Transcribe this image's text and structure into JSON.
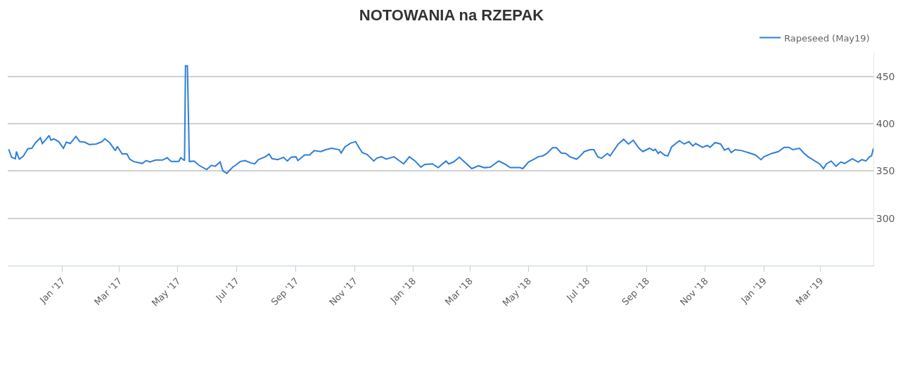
{
  "chart_data": {
    "type": "line",
    "title": "NOTOWANIA na RZEPAK",
    "x": [
      "2016-11-06",
      "2016-11-09",
      "2016-11-13",
      "2016-11-14",
      "2016-11-17",
      "2016-11-21",
      "2016-11-26",
      "2016-11-30",
      "2016-12-04",
      "2016-12-09",
      "2016-12-11",
      "2016-12-15",
      "2016-12-18",
      "2016-12-20",
      "2016-12-23",
      "2016-12-28",
      "2017-01-02",
      "2017-01-05",
      "2017-01-09",
      "2017-01-15",
      "2017-01-19",
      "2017-01-24",
      "2017-01-29",
      "2017-02-05",
      "2017-02-11",
      "2017-02-14",
      "2017-02-19",
      "2017-02-25",
      "2017-02-27",
      "2017-03-04",
      "2017-03-09",
      "2017-03-12",
      "2017-03-16",
      "2017-03-25",
      "2017-03-29",
      "2017-04-02",
      "2017-04-08",
      "2017-04-15",
      "2017-04-20",
      "2017-04-24",
      "2017-05-02",
      "2017-05-04",
      "2017-05-08",
      "2017-05-09",
      "2017-05-11",
      "2017-05-13",
      "2017-05-18",
      "2017-05-23",
      "2017-05-31",
      "2017-06-05",
      "2017-06-09",
      "2017-06-14",
      "2017-06-17",
      "2017-06-21",
      "2017-06-27",
      "2017-06-30",
      "2017-07-05",
      "2017-07-10",
      "2017-07-16",
      "2017-07-20",
      "2017-07-24",
      "2017-07-31",
      "2017-08-04",
      "2017-08-07",
      "2017-08-13",
      "2017-08-19",
      "2017-08-23",
      "2017-08-27",
      "2017-09-01",
      "2017-09-03",
      "2017-09-10",
      "2017-09-15",
      "2017-09-20",
      "2017-09-27",
      "2017-10-02",
      "2017-10-08",
      "2017-10-16",
      "2017-10-18",
      "2017-10-22",
      "2017-10-28",
      "2017-11-02",
      "2017-11-06",
      "2017-11-09",
      "2017-11-14",
      "2017-11-21",
      "2017-11-24",
      "2017-11-29",
      "2017-12-04",
      "2017-12-12",
      "2017-12-18",
      "2017-12-22",
      "2017-12-28",
      "2018-01-03",
      "2018-01-09",
      "2018-01-13",
      "2018-01-21",
      "2018-01-27",
      "2018-02-04",
      "2018-02-07",
      "2018-02-12",
      "2018-02-18",
      "2018-02-24",
      "2018-03-03",
      "2018-03-10",
      "2018-03-16",
      "2018-03-22",
      "2018-03-31",
      "2018-04-06",
      "2018-04-12",
      "2018-04-22",
      "2018-04-25",
      "2018-05-01",
      "2018-05-06",
      "2018-05-11",
      "2018-05-16",
      "2018-05-20",
      "2018-05-26",
      "2018-05-30",
      "2018-06-04",
      "2018-06-09",
      "2018-06-13",
      "2018-06-20",
      "2018-06-23",
      "2018-06-28",
      "2018-07-04",
      "2018-07-08",
      "2018-07-12",
      "2018-07-16",
      "2018-07-22",
      "2018-07-25",
      "2018-07-29",
      "2018-08-02",
      "2018-08-08",
      "2018-08-13",
      "2018-08-18",
      "2018-08-24",
      "2018-08-28",
      "2018-09-04",
      "2018-09-08",
      "2018-09-10",
      "2018-09-13",
      "2018-09-15",
      "2018-09-20",
      "2018-09-23",
      "2018-09-27",
      "2018-10-05",
      "2018-10-10",
      "2018-10-15",
      "2018-10-19",
      "2018-10-22",
      "2018-10-29",
      "2018-11-03",
      "2018-11-06",
      "2018-11-11",
      "2018-11-17",
      "2018-11-21",
      "2018-11-25",
      "2018-11-28",
      "2018-12-02",
      "2018-12-09",
      "2018-12-17",
      "2018-12-23",
      "2018-12-29",
      "2019-01-01",
      "2019-01-09",
      "2019-01-16",
      "2019-01-22",
      "2019-01-27",
      "2019-01-31",
      "2019-02-07",
      "2019-02-12",
      "2019-02-16",
      "2019-02-20",
      "2019-02-23",
      "2019-02-28",
      "2019-03-04",
      "2019-03-07",
      "2019-03-12",
      "2019-03-17",
      "2019-03-22",
      "2019-03-26",
      "2019-04-03",
      "2019-04-09",
      "2019-04-13",
      "2019-04-17",
      "2019-04-21",
      "2019-04-23",
      "2019-04-25"
    ],
    "series": [
      {
        "name": "Rapeseed (May19)",
        "color": "#2f7ed8",
        "values": [
          373,
          364.5,
          363,
          370.5,
          362.5,
          365.5,
          373.5,
          374,
          380,
          385,
          379,
          383.5,
          387.5,
          382.5,
          384,
          381,
          374,
          380.5,
          379,
          386.5,
          381,
          380.5,
          378,
          378.5,
          381,
          384,
          380,
          371.5,
          376,
          368,
          368,
          362.5,
          360,
          358,
          361,
          359.5,
          361.5,
          361.5,
          364,
          360,
          360,
          364,
          361,
          461,
          461,
          360,
          360.5,
          356,
          351.5,
          356,
          355,
          359.5,
          350,
          347.5,
          354,
          356,
          360,
          361,
          358.5,
          357.5,
          362,
          365,
          368,
          363,
          362,
          364.5,
          360.5,
          364.5,
          365,
          361,
          367,
          367,
          371.5,
          370.5,
          372.5,
          374,
          372.5,
          369,
          375.5,
          379.5,
          381,
          374,
          369.5,
          367.5,
          360.5,
          363.5,
          365,
          362.5,
          365,
          360.5,
          357.5,
          365,
          360.5,
          354,
          357,
          357.5,
          353.5,
          360.5,
          357.5,
          359.5,
          364.5,
          359,
          352.5,
          355.5,
          353.5,
          354,
          360.5,
          357.5,
          353.5,
          353.5,
          352.5,
          359.5,
          362,
          365,
          366,
          368.5,
          374.5,
          374.5,
          369,
          368.5,
          365,
          362.5,
          365,
          370.5,
          372.5,
          372.5,
          365,
          363.5,
          368.5,
          366,
          372,
          378,
          383.5,
          378.5,
          382.5,
          374,
          370.5,
          374,
          371.5,
          373,
          368.5,
          370.5,
          366.5,
          366,
          375.5,
          382,
          378.5,
          381,
          376.5,
          379,
          375,
          377,
          375,
          380,
          378.5,
          372,
          374,
          369.5,
          372.5,
          371.5,
          369,
          367,
          362,
          365,
          368.5,
          370.5,
          375,
          375,
          372.5,
          374,
          368.5,
          365,
          362.5,
          360.5,
          357.5,
          352.5,
          357.5,
          360.5,
          355,
          359.5,
          358,
          363,
          359.5,
          362,
          360.5,
          365,
          366,
          374
        ]
      }
    ],
    "xlim": [
      "2016-11-05",
      "2019-04-25"
    ],
    "xticks": [
      {
        "value": "2017-01-01",
        "label": "Jan '17"
      },
      {
        "value": "2017-03-01",
        "label": "Mar '17"
      },
      {
        "value": "2017-05-01",
        "label": "May '17"
      },
      {
        "value": "2017-07-01",
        "label": "Jul '17"
      },
      {
        "value": "2017-09-01",
        "label": "Sep '17"
      },
      {
        "value": "2017-11-01",
        "label": "Nov '17"
      },
      {
        "value": "2018-01-01",
        "label": "Jan '18"
      },
      {
        "value": "2018-03-01",
        "label": "Mar '18"
      },
      {
        "value": "2018-05-01",
        "label": "May '18"
      },
      {
        "value": "2018-07-01",
        "label": "Jul '18"
      },
      {
        "value": "2018-09-01",
        "label": "Sep '18"
      },
      {
        "value": "2018-11-01",
        "label": "Nov '18"
      },
      {
        "value": "2019-01-01",
        "label": "Jan '19"
      },
      {
        "value": "2019-03-01",
        "label": "Mar '19"
      }
    ],
    "ylim": [
      250,
      475
    ],
    "yticks": [
      300,
      350,
      400,
      450
    ],
    "grid": "y",
    "legend": "top right",
    "marker": "none",
    "line_style": "solid"
  }
}
